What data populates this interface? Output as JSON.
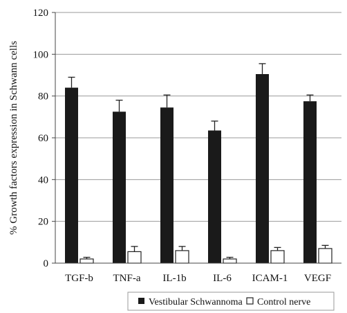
{
  "chart_data": {
    "type": "bar",
    "title": "",
    "xlabel": "",
    "ylabel": "% Growth factors expression in Schwann cells",
    "ylim": [
      0,
      120
    ],
    "yticks": [
      0,
      20,
      40,
      60,
      80,
      100,
      120
    ],
    "grid": true,
    "legend_position": "bottom",
    "categories": [
      "TGF-b",
      "TNF-a",
      "IL-1b",
      "IL-6",
      "ICAM-1",
      "VEGF"
    ],
    "series": [
      {
        "name": "Vestibular Schwannoma",
        "color": "#1a1a1a",
        "values": [
          84,
          72.5,
          74.5,
          63.5,
          90.5,
          77.5
        ],
        "errors": [
          5,
          5.5,
          6,
          4.5,
          5,
          3
        ]
      },
      {
        "name": "Control nerve",
        "color": "#ffffff",
        "values": [
          2,
          5.5,
          6,
          2,
          6,
          7
        ],
        "errors": [
          0.8,
          2.5,
          2,
          0.8,
          1.5,
          1.5
        ]
      }
    ]
  }
}
